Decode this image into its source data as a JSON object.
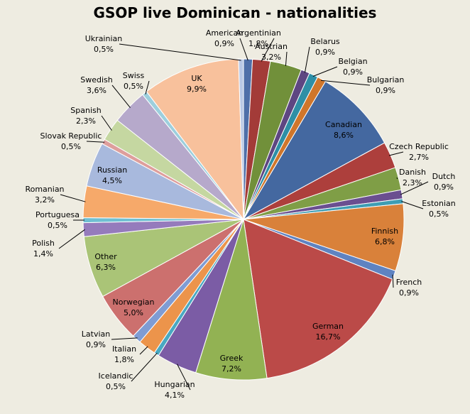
{
  "chart_data": {
    "type": "pie",
    "title": "GSOP live Dominican - nationalities",
    "slices": [
      {
        "label": "American",
        "value": 0.9,
        "value_label": "0,9%",
        "color": "#4f6fa8"
      },
      {
        "label": "Argentinian",
        "value": 1.8,
        "value_label": "1,8%",
        "color": "#a33b38"
      },
      {
        "label": "Austrian",
        "value": 3.2,
        "value_label": "3,2%",
        "color": "#71903a"
      },
      {
        "label": "Belarus",
        "value": 0.9,
        "value_label": "0,9%",
        "color": "#5e4682"
      },
      {
        "label": "Belgian",
        "value": 0.9,
        "value_label": "0,9%",
        "color": "#2e8fa6"
      },
      {
        "label": "Bulgarian",
        "value": 0.9,
        "value_label": "0,9%",
        "color": "#d0762b"
      },
      {
        "label": "Canadian",
        "value": 8.6,
        "value_label": "8,6%",
        "color": "#4468a0"
      },
      {
        "label": "Czech Republic",
        "value": 2.7,
        "value_label": "2,7%",
        "color": "#ad3f3c"
      },
      {
        "label": "Danish",
        "value": 2.3,
        "value_label": "2,3%",
        "color": "#7f9e46"
      },
      {
        "label": "Dutch",
        "value": 0.9,
        "value_label": "0,9%",
        "color": "#6a4f90"
      },
      {
        "label": "Estonian",
        "value": 0.5,
        "value_label": "0,5%",
        "color": "#3e9db3"
      },
      {
        "label": "Finnish",
        "value": 6.8,
        "value_label": "6,8%",
        "color": "#d9813a"
      },
      {
        "label": "French",
        "value": 0.9,
        "value_label": "0,9%",
        "color": "#5f83c1"
      },
      {
        "label": "German",
        "value": 16.7,
        "value_label": "16,7%",
        "color": "#bb4a48"
      },
      {
        "label": "Greek",
        "value": 7.2,
        "value_label": "7,2%",
        "color": "#92b253"
      },
      {
        "label": "Hungarian",
        "value": 4.1,
        "value_label": "4,1%",
        "color": "#7b5ca5"
      },
      {
        "label": "Icelandic",
        "value": 0.5,
        "value_label": "0,5%",
        "color": "#49a9c2"
      },
      {
        "label": "Italian",
        "value": 1.8,
        "value_label": "1,8%",
        "color": "#ec944b"
      },
      {
        "label": "Latvian",
        "value": 0.9,
        "value_label": "0,9%",
        "color": "#7f9cd3"
      },
      {
        "label": "Norwegian",
        "value": 5.0,
        "value_label": "5,0%",
        "color": "#cc706e"
      },
      {
        "label": "Other",
        "value": 6.3,
        "value_label": "6,3%",
        "color": "#aac477"
      },
      {
        "label": "Polish",
        "value": 1.4,
        "value_label": "1,4%",
        "color": "#957bbc"
      },
      {
        "label": "Portuguesa",
        "value": 0.5,
        "value_label": "0,5%",
        "color": "#6fbfd2"
      },
      {
        "label": "Romanian",
        "value": 3.2,
        "value_label": "3,2%",
        "color": "#f6a96a"
      },
      {
        "label": "Russian",
        "value": 4.5,
        "value_label": "4,5%",
        "color": "#a8b9dd"
      },
      {
        "label": "Slovak Republic",
        "value": 0.5,
        "value_label": "0,5%",
        "color": "#de9e9c"
      },
      {
        "label": "Spanish",
        "value": 2.3,
        "value_label": "2,3%",
        "color": "#c5d7a1"
      },
      {
        "label": "Swedish",
        "value": 3.6,
        "value_label": "3,6%",
        "color": "#b6a9cb"
      },
      {
        "label": "Swiss",
        "value": 0.5,
        "value_label": "0,5%",
        "color": "#9dcfdd"
      },
      {
        "label": "UK",
        "value": 9.9,
        "value_label": "9,9%",
        "color": "#f8c19c"
      },
      {
        "label": "Ukrainian",
        "value": 0.5,
        "value_label": "0,5%",
        "color": "#b9c8e5"
      }
    ]
  }
}
